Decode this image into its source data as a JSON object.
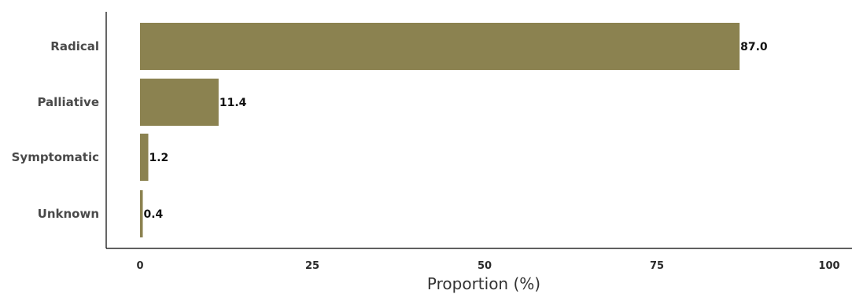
{
  "chart_data": {
    "type": "bar",
    "orientation": "horizontal",
    "categories": [
      "Radical",
      "Palliative",
      "Symptomatic",
      "Unknown"
    ],
    "values": [
      87.0,
      11.4,
      1.2,
      0.4
    ],
    "value_labels": [
      "87.0",
      "11.4",
      "1.2",
      "0.4"
    ],
    "xlabel": "Proportion (%)",
    "ylabel": "",
    "xlim": [
      0,
      100
    ],
    "xticks": [
      0,
      25,
      50,
      75,
      100
    ],
    "grid": false,
    "bar_color": "#8b8250"
  }
}
